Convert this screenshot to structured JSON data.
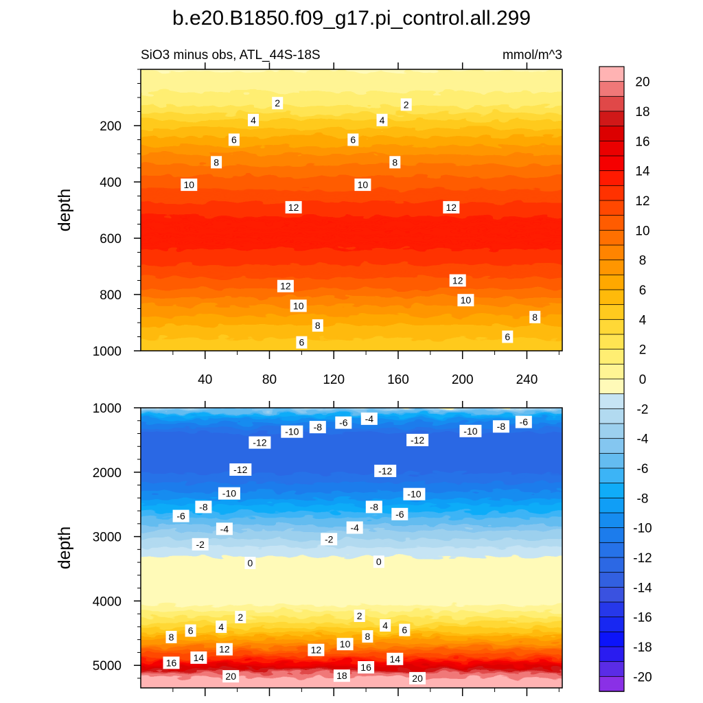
{
  "figure": {
    "title": "b.e20.B1850.f09_g17.pi_control.all.299",
    "subtitle_left": "SiO3 minus obs, ATL_44S-18S",
    "subtitle_right": "mmol/m^3"
  },
  "chart_data": [
    {
      "type": "heatmap",
      "name": "upper-panel",
      "x": [
        20,
        40,
        60,
        80,
        100,
        120,
        140,
        160,
        180,
        200,
        220,
        240,
        260
      ],
      "xlim": [
        0,
        262
      ],
      "ylim": [
        0,
        1000
      ],
      "y_inverted": true,
      "xticks": [
        "40",
        "80",
        "120",
        "160",
        "200",
        "240"
      ],
      "xtick_values": [
        40,
        80,
        120,
        160,
        200,
        240
      ],
      "yticks": [
        "200",
        "400",
        "600",
        "800",
        "1000"
      ],
      "ytick_values": [
        200,
        400,
        600,
        800,
        1000
      ],
      "ylabel": "depth",
      "profile": {
        "depth": [
          0,
          40,
          100,
          150,
          200,
          260,
          320,
          400,
          470,
          540,
          600,
          660,
          740,
          800,
          860,
          930,
          1000
        ],
        "value": [
          -1,
          0.5,
          1,
          2,
          4,
          6,
          8,
          10,
          11.5,
          13,
          13.5,
          13,
          11.5,
          10,
          8,
          6,
          4.5
        ]
      },
      "contour_labels": [
        {
          "text": "2",
          "x": 85,
          "y": 120
        },
        {
          "text": "2",
          "x": 165,
          "y": 125
        },
        {
          "text": "4",
          "x": 70,
          "y": 180
        },
        {
          "text": "4",
          "x": 150,
          "y": 180
        },
        {
          "text": "6",
          "x": 58,
          "y": 250
        },
        {
          "text": "6",
          "x": 132,
          "y": 250
        },
        {
          "text": "8",
          "x": 47,
          "y": 330
        },
        {
          "text": "8",
          "x": 158,
          "y": 330
        },
        {
          "text": "10",
          "x": 30,
          "y": 410
        },
        {
          "text": "10",
          "x": 138,
          "y": 410
        },
        {
          "text": "12",
          "x": 95,
          "y": 490
        },
        {
          "text": "12",
          "x": 193,
          "y": 490
        },
        {
          "text": "12",
          "x": 90,
          "y": 770
        },
        {
          "text": "12",
          "x": 197,
          "y": 750
        },
        {
          "text": "10",
          "x": 98,
          "y": 840
        },
        {
          "text": "10",
          "x": 202,
          "y": 820
        },
        {
          "text": "8",
          "x": 110,
          "y": 910
        },
        {
          "text": "8",
          "x": 245,
          "y": 880
        },
        {
          "text": "6",
          "x": 100,
          "y": 970
        },
        {
          "text": "6",
          "x": 228,
          "y": 950
        }
      ]
    },
    {
      "type": "heatmap",
      "name": "lower-panel",
      "x": [
        20,
        40,
        60,
        80,
        100,
        120,
        140,
        160,
        180,
        200,
        220,
        240,
        260
      ],
      "xlim": [
        0,
        262
      ],
      "ylim": [
        1000,
        5350
      ],
      "y_inverted": true,
      "xticks": [
        "",
        "",
        "",
        "",
        "",
        ""
      ],
      "xtick_values": [
        40,
        80,
        120,
        160,
        200,
        240
      ],
      "yticks": [
        "1000",
        "2000",
        "3000",
        "4000",
        "5000"
      ],
      "ytick_values": [
        1000,
        2000,
        3000,
        4000,
        5000
      ],
      "ylabel": "depth",
      "profile": {
        "depth": [
          1000,
          1100,
          1250,
          1500,
          1800,
          2100,
          2400,
          2700,
          3000,
          3300,
          3500,
          4100,
          4250,
          4500,
          4750,
          4950,
          5100,
          5200,
          5350
        ],
        "value": [
          5,
          -4,
          -9,
          -12.5,
          -13,
          -12,
          -10,
          -7,
          -4,
          -1.5,
          -0.5,
          -0.5,
          1,
          4,
          8,
          12,
          16,
          19,
          21
        ]
      },
      "contour_labels": [
        {
          "text": "-4",
          "x": 142,
          "y": 1170
        },
        {
          "text": "-6",
          "x": 126,
          "y": 1230
        },
        {
          "text": "-8",
          "x": 110,
          "y": 1300
        },
        {
          "text": "-10",
          "x": 94,
          "y": 1370
        },
        {
          "text": "-12",
          "x": 74,
          "y": 1540
        },
        {
          "text": "-12",
          "x": 172,
          "y": 1500
        },
        {
          "text": "-10",
          "x": 205,
          "y": 1360
        },
        {
          "text": "-8",
          "x": 224,
          "y": 1290
        },
        {
          "text": "-6",
          "x": 238,
          "y": 1220
        },
        {
          "text": "-12",
          "x": 62,
          "y": 1960
        },
        {
          "text": "-12",
          "x": 152,
          "y": 1980
        },
        {
          "text": "-10",
          "x": 55,
          "y": 2330
        },
        {
          "text": "-10",
          "x": 170,
          "y": 2340
        },
        {
          "text": "-8",
          "x": 39,
          "y": 2540
        },
        {
          "text": "-8",
          "x": 145,
          "y": 2540
        },
        {
          "text": "-6",
          "x": 25,
          "y": 2680
        },
        {
          "text": "-6",
          "x": 161,
          "y": 2650
        },
        {
          "text": "-4",
          "x": 52,
          "y": 2880
        },
        {
          "text": "-4",
          "x": 133,
          "y": 2860
        },
        {
          "text": "-2",
          "x": 37,
          "y": 3120
        },
        {
          "text": "-2",
          "x": 117,
          "y": 3040
        },
        {
          "text": "0",
          "x": 68,
          "y": 3410
        },
        {
          "text": "0",
          "x": 148,
          "y": 3390
        },
        {
          "text": "2",
          "x": 62,
          "y": 4250
        },
        {
          "text": "2",
          "x": 136,
          "y": 4230
        },
        {
          "text": "4",
          "x": 50,
          "y": 4400
        },
        {
          "text": "4",
          "x": 152,
          "y": 4380
        },
        {
          "text": "6",
          "x": 31,
          "y": 4460
        },
        {
          "text": "6",
          "x": 164,
          "y": 4450
        },
        {
          "text": "8",
          "x": 19,
          "y": 4560
        },
        {
          "text": "8",
          "x": 141,
          "y": 4550
        },
        {
          "text": "10",
          "x": 127,
          "y": 4670
        },
        {
          "text": "12",
          "x": 52,
          "y": 4750
        },
        {
          "text": "12",
          "x": 109,
          "y": 4760
        },
        {
          "text": "14",
          "x": 36,
          "y": 4880
        },
        {
          "text": "14",
          "x": 158,
          "y": 4900
        },
        {
          "text": "16",
          "x": 19,
          "y": 4960
        },
        {
          "text": "16",
          "x": 140,
          "y": 5030
        },
        {
          "text": "18",
          "x": 125,
          "y": 5160
        },
        {
          "text": "20",
          "x": 56,
          "y": 5170
        },
        {
          "text": "20",
          "x": 172,
          "y": 5200
        }
      ]
    }
  ],
  "colorbar": {
    "labels": [
      "20",
      "18",
      "16",
      "14",
      "12",
      "10",
      "8",
      "6",
      "4",
      "2",
      "0",
      "-2",
      "-4",
      "-6",
      "-8",
      "-10",
      "-12",
      "-14",
      "-16",
      "-18",
      "-20"
    ],
    "colors_top_to_bottom": [
      "#ffb3b3",
      "#f07878",
      "#e04848",
      "#d01818",
      "#dc0000",
      "#ea0000",
      "#f50000",
      "#ff1a00",
      "#ff3200",
      "#ff4800",
      "#ff5c00",
      "#ff7000",
      "#ff8400",
      "#ff9600",
      "#ffa800",
      "#ffba0a",
      "#ffca1e",
      "#ffd836",
      "#ffe452",
      "#ffee72",
      "#fff494",
      "#fffab8",
      "#c6e4f4",
      "#b2daf0",
      "#9cd0ee",
      "#84c6f0",
      "#64bcf0",
      "#3cb4f6",
      "#10acf8",
      "#109ef6",
      "#168cf0",
      "#1c7cec",
      "#2672e8",
      "#2c68e4",
      "#3260e0",
      "#3a52e0",
      "#2638ea",
      "#1828f2",
      "#0c14fa",
      "#2a1cf0",
      "#5a2ce6",
      "#8a30e6"
    ]
  }
}
